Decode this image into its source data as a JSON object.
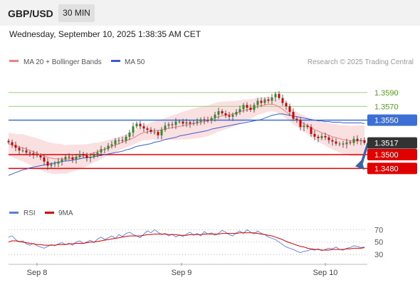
{
  "header": {
    "symbol": "GBP/USD",
    "timeframe": "30 MIN"
  },
  "datetime": "Wednesday, September 10, 2025 1:38:35 AM CET",
  "legend": {
    "ma20_label": "MA 20 + Bollinger Bands",
    "ma50_label": "MA 50",
    "research": "Research © 2025 Trading Central"
  },
  "rsi_legend": {
    "rsi_label": "RSI",
    "ma_label": "9MA"
  },
  "colors": {
    "bull": "#2e8b2e",
    "bear": "#d40000",
    "ma20": "#f08080",
    "ma50": "#3a5fcd",
    "band": "#fadadd",
    "resistance": "#9acd7a",
    "pivot": "#3b6fd6",
    "support": "#e00000",
    "rsi": "#5b7fd6",
    "rsi_ma": "#d40000",
    "arrow": "#3a63a8"
  },
  "chart_data": [
    {
      "type": "candlestick",
      "title": "GBP/USD 30 MIN",
      "x_ticks": [
        "Sep 8",
        "Sep 9",
        "Sep 10"
      ],
      "ylim": [
        1.3435,
        1.3625
      ],
      "current_price": "1.3517",
      "levels": [
        {
          "label": "1.3590",
          "value": 1.359,
          "kind": "resistance"
        },
        {
          "label": "1.3570",
          "value": 1.357,
          "kind": "resistance"
        },
        {
          "label": "1.3550",
          "value": 1.355,
          "kind": "pivot"
        },
        {
          "label": "1.3500",
          "value": 1.35,
          "kind": "support"
        },
        {
          "label": "1.3480",
          "value": 1.348,
          "kind": "support"
        }
      ],
      "closes": [
        1.3518,
        1.3514,
        1.351,
        1.3506,
        1.3506,
        1.3503,
        1.3502,
        1.35,
        1.3499,
        1.3496,
        1.349,
        1.3484,
        1.3486,
        1.3487,
        1.349,
        1.3493,
        1.3497,
        1.3496,
        1.3493,
        1.3497,
        1.3501,
        1.3499,
        1.3495,
        1.3497,
        1.35,
        1.3503,
        1.3508,
        1.3508,
        1.3513,
        1.3515,
        1.3521,
        1.3521,
        1.352,
        1.3526,
        1.3532,
        1.3541,
        1.3545,
        1.3541,
        1.3538,
        1.3536,
        1.3533,
        1.3533,
        1.3528,
        1.3536,
        1.3542,
        1.3544,
        1.3543,
        1.3548,
        1.3548,
        1.3545,
        1.3547,
        1.3545,
        1.3546,
        1.3548,
        1.3551,
        1.355,
        1.3549,
        1.3553,
        1.3558,
        1.3563,
        1.356,
        1.3557,
        1.3555,
        1.3558,
        1.3562,
        1.3566,
        1.3572,
        1.3568,
        1.3565,
        1.3572,
        1.3578,
        1.3575,
        1.358,
        1.3578,
        1.3583,
        1.3588,
        1.3582,
        1.3575,
        1.357,
        1.3562,
        1.3552,
        1.355,
        1.354,
        1.3542,
        1.354,
        1.353,
        1.3526,
        1.3524,
        1.3527,
        1.3525,
        1.3521,
        1.3519,
        1.3516,
        1.3516,
        1.3515,
        1.3518,
        1.3517,
        1.3523,
        1.352,
        1.3521,
        1.3517
      ],
      "ma20": [
        1.3516,
        1.3514,
        1.3512,
        1.3511,
        1.351,
        1.3508,
        1.3506,
        1.3504,
        1.3502,
        1.35,
        1.3498,
        1.3496,
        1.3495,
        1.3494,
        1.3494,
        1.3494,
        1.3493,
        1.3494,
        1.3495,
        1.3496,
        1.3497,
        1.3498,
        1.3499,
        1.3501,
        1.3503,
        1.3504,
        1.3506,
        1.3508,
        1.351,
        1.3512,
        1.3514,
        1.3516,
        1.3518,
        1.352,
        1.3522,
        1.3524,
        1.3527,
        1.353,
        1.3532,
        1.3533,
        1.3534,
        1.3535,
        1.3535,
        1.3536,
        1.3537,
        1.3538,
        1.3539,
        1.354,
        1.3541,
        1.3542,
        1.3543,
        1.3544,
        1.3545,
        1.3546,
        1.3547,
        1.3548,
        1.3549,
        1.3551,
        1.3553,
        1.3555,
        1.3556,
        1.3557,
        1.3558,
        1.3559,
        1.356,
        1.3562,
        1.3564,
        1.3565,
        1.3566,
        1.3568,
        1.357,
        1.3571,
        1.3572,
        1.3573,
        1.3573,
        1.3572,
        1.3569,
        1.3566,
        1.3562,
        1.3558,
        1.3554,
        1.3551,
        1.3548,
        1.3545,
        1.3542,
        1.3539,
        1.3536,
        1.3534,
        1.3532,
        1.353,
        1.3528,
        1.3526,
        1.3525,
        1.3523,
        1.3522,
        1.3521,
        1.352,
        1.352,
        1.352,
        1.352,
        1.352
      ],
      "ma50": [
        1.347,
        1.3472,
        1.3474,
        1.3476,
        1.3478,
        1.3479,
        1.3481,
        1.3482,
        1.3483,
        1.3484,
        1.3485,
        1.3486,
        1.3487,
        1.3488,
        1.3489,
        1.349,
        1.3491,
        1.3491,
        1.3492,
        1.3493,
        1.3494,
        1.3495,
        1.3496,
        1.3496,
        1.3497,
        1.3498,
        1.3499,
        1.35,
        1.3501,
        1.3502,
        1.3503,
        1.3504,
        1.3505,
        1.3507,
        1.3508,
        1.351,
        1.3512,
        1.3513,
        1.3514,
        1.3515,
        1.3516,
        1.3518,
        1.3519,
        1.352,
        1.3522,
        1.3523,
        1.3524,
        1.3525,
        1.3527,
        1.3528,
        1.3529,
        1.353,
        1.3531,
        1.3532,
        1.3533,
        1.3534,
        1.3535,
        1.3537,
        1.3538,
        1.3539,
        1.354,
        1.3541,
        1.3542,
        1.3543,
        1.3544,
        1.3545,
        1.3546,
        1.3547,
        1.3548,
        1.3549,
        1.355,
        1.3551,
        1.3553,
        1.3555,
        1.3557,
        1.3558,
        1.3559,
        1.3559,
        1.3558,
        1.3557,
        1.3556,
        1.3555,
        1.3554,
        1.3553,
        1.3552,
        1.3551,
        1.355,
        1.3549,
        1.3549,
        1.3548,
        1.3548,
        1.3547,
        1.3547,
        1.3547,
        1.3546,
        1.3546,
        1.3546,
        1.3546,
        1.3546,
        1.3546,
        1.3545
      ],
      "bb_width": 0.0016,
      "rsi_panel": {
        "ticks": [
          70,
          50,
          30
        ],
        "ylim": [
          22,
          82
        ],
        "rsi": [
          58,
          60,
          54,
          50,
          52,
          47,
          45,
          48,
          44,
          42,
          40,
          43,
          46,
          44,
          47,
          49,
          46,
          48,
          45,
          50,
          52,
          48,
          50,
          53,
          49,
          55,
          58,
          54,
          57,
          60,
          56,
          62,
          59,
          64,
          66,
          62,
          60,
          57,
          63,
          68,
          65,
          70,
          66,
          62,
          64,
          60,
          63,
          58,
          62,
          59,
          63,
          66,
          61,
          64,
          60,
          67,
          63,
          65,
          61,
          64,
          69,
          66,
          62,
          60,
          65,
          68,
          64,
          70,
          66,
          63,
          68,
          64,
          62,
          58,
          56,
          54,
          50,
          46,
          42,
          40,
          38,
          35,
          33,
          35,
          36,
          38,
          37,
          39,
          36,
          38,
          40,
          39,
          42,
          38,
          37,
          40,
          41,
          44,
          43,
          41,
          42
        ],
        "rsi_ma": [
          50,
          52,
          52,
          51,
          50,
          49,
          48,
          47,
          46,
          46,
          45,
          45,
          45,
          45,
          46,
          46,
          46,
          47,
          47,
          48,
          48,
          48,
          49,
          50,
          50,
          51,
          52,
          53,
          54,
          55,
          56,
          57,
          58,
          59,
          60,
          60,
          60,
          60,
          61,
          62,
          62,
          63,
          63,
          63,
          63,
          62,
          62,
          62,
          61,
          61,
          61,
          62,
          62,
          62,
          62,
          63,
          63,
          63,
          63,
          63,
          64,
          64,
          64,
          64,
          64,
          65,
          65,
          65,
          65,
          65,
          64,
          63,
          62,
          61,
          60,
          58,
          56,
          54,
          51,
          49,
          47,
          45,
          43,
          42,
          40,
          39,
          38,
          38,
          37,
          37,
          37,
          38,
          38,
          38,
          38,
          39,
          39,
          40,
          40,
          40,
          41
        ]
      }
    }
  ]
}
